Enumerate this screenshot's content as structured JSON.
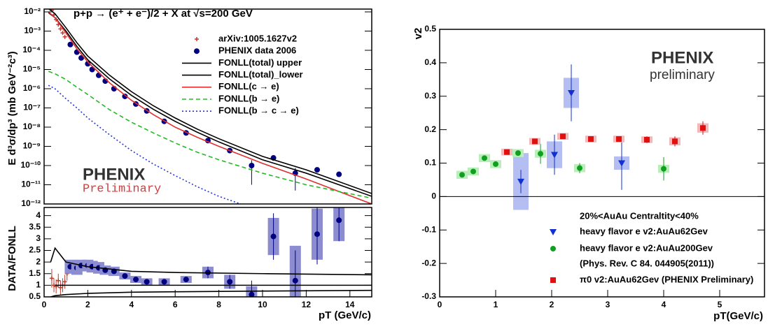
{
  "chart_data": [
    {
      "type": "scatter",
      "title": "p+p → (e⁺ + e⁻)/2 + X at √s=200 GeV",
      "y_label": "E d³σ/dp³ (mb GeV⁻²c³)",
      "log_y": true,
      "xlim": [
        0,
        15
      ],
      "ylim": [
        1e-12,
        0.014
      ],
      "yticks": [
        {
          "value": 1e-12,
          "label": "10⁻¹²"
        },
        {
          "value": 1e-11,
          "label": "10⁻¹¹"
        },
        {
          "value": 1e-10,
          "label": "10⁻¹⁰"
        },
        {
          "value": 1e-09,
          "label": "10⁻⁹"
        },
        {
          "value": 1e-08,
          "label": "10⁻⁸"
        },
        {
          "value": 1e-07,
          "label": "10⁻⁷"
        },
        {
          "value": 1e-06,
          "label": "10⁻⁶"
        },
        {
          "value": 1e-05,
          "label": "10⁻⁵"
        },
        {
          "value": 0.0001,
          "label": "10⁻⁴"
        },
        {
          "value": 0.001,
          "label": "10⁻³"
        },
        {
          "value": 0.01,
          "label": "10⁻²"
        }
      ],
      "logo": {
        "name": "PHENIX",
        "sub": "Preliminary"
      },
      "series": [
        {
          "name": "arXiv:1005.1627v2",
          "color": "#c0392b",
          "marker": "cross",
          "x": [
            0.35,
            0.45,
            0.55,
            0.65,
            0.75,
            0.85,
            0.95
          ],
          "values": [
            0.012,
            0.007,
            0.004,
            0.0022,
            0.0013,
            0.0008,
            0.0005
          ]
        },
        {
          "name": "PHENIX data 2006",
          "color": "#000080",
          "marker": "circle",
          "x": [
            1.2,
            1.5,
            1.7,
            2,
            2.2,
            2.5,
            2.8,
            3.2,
            3.7,
            4.2,
            4.7,
            5.5,
            6.5,
            7.5,
            8.5,
            9.5,
            10.5,
            11.5,
            12.5,
            13.5
          ],
          "values": [
            0.0002,
            8e-05,
            4e-05,
            2e-05,
            1e-05,
            5e-06,
            2.5e-06,
            1e-06,
            4e-07,
            1.6e-07,
            7e-08,
            2e-08,
            5e-09,
            2e-09,
            6e-10,
            1e-10,
            2.5e-10,
            4e-11,
            6e-11,
            3.5e-11
          ],
          "errors": [
            null,
            null,
            null,
            null,
            null,
            null,
            null,
            null,
            null,
            null,
            null,
            null,
            null,
            null,
            null,
            9e-11,
            null,
            3.5e-11,
            null,
            null
          ]
        },
        {
          "name": "FONLL(total) upper",
          "color": "#000000",
          "line": "solid",
          "x": [
            0.2,
            0.5,
            1,
            1.5,
            2,
            3,
            4,
            5,
            6,
            7,
            8,
            10,
            12,
            15
          ],
          "values": [
            0.015,
            0.008,
            0.0015,
            0.00025,
            5e-05,
            5e-06,
            7e-07,
            1.3e-07,
            3e-08,
            8e-09,
            2.5e-09,
            3e-10,
            6e-11,
            3.5e-12
          ]
        },
        {
          "name": "FONLL(total)_lower",
          "color": "#000000",
          "line": "solid",
          "x": [
            0.2,
            0.5,
            1,
            1.5,
            2,
            3,
            4,
            5,
            6,
            7,
            8,
            10,
            12,
            15
          ],
          "values": [
            0.009,
            0.005,
            0.001,
            0.00016,
            3.2e-05,
            3.2e-06,
            4.5e-07,
            8.5e-08,
            2e-08,
            5.5e-09,
            1.7e-09,
            2e-10,
            4e-11,
            2.5e-12
          ]
        },
        {
          "name": "FONLL(c → e)",
          "color": "#e03030",
          "line": "solid",
          "x": [
            0.2,
            0.5,
            1,
            1.5,
            2,
            3,
            4,
            5,
            6,
            7,
            8,
            10,
            12,
            15
          ],
          "values": [
            0.01,
            0.005,
            0.0008,
            0.00012,
            2.5e-05,
            2e-06,
            2.5e-07,
            4.5e-08,
            1e-08,
            3e-09,
            1e-09,
            1.3e-10,
            2e-11,
            1e-12
          ]
        },
        {
          "name": "FONLL(b → e)",
          "color": "#22bb22",
          "line": "dashed",
          "x": [
            0.2,
            0.5,
            1,
            1.5,
            2,
            3,
            4,
            5,
            6,
            7,
            8,
            10,
            12,
            15
          ],
          "values": [
            8e-06,
            6e-06,
            3e-06,
            1.2e-06,
            5e-07,
            8e-08,
            1.8e-08,
            5e-09,
            1.5e-09,
            5e-10,
            2e-10,
            4e-11,
            1e-11,
            2e-12
          ]
        },
        {
          "name": "FONLL(b → c → e)",
          "color": "#2233dd",
          "line": "dotted",
          "x": [
            0.2,
            0.5,
            1,
            1.5,
            2,
            3,
            4,
            5,
            6,
            7,
            8,
            9
          ],
          "values": [
            1.5e-06,
            1e-06,
            3e-07,
            1e-07,
            3e-08,
            4e-09,
            6e-10,
            1.2e-10,
            3e-11,
            8e-12,
            2.5e-12,
            1e-12
          ]
        }
      ]
    },
    {
      "type": "scatter",
      "x_label": "pT (GeV/c)",
      "y_label": "DATA/FONLL",
      "xlim": [
        0,
        15
      ],
      "ylim": [
        0.5,
        4.35
      ],
      "xticks": [
        0,
        2,
        4,
        6,
        8,
        10,
        12,
        14
      ],
      "yticks": [
        0.5,
        1,
        1.5,
        2,
        2.5,
        3,
        3.5,
        4
      ],
      "series": [
        {
          "color": "#c0392b",
          "marker": "cross",
          "x": [
            0.35,
            0.45,
            0.55,
            0.65,
            0.75,
            0.85,
            0.95,
            1.05
          ],
          "values": [
            1.3,
            1.0,
            0.95,
            1.2,
            0.9,
            1.0,
            1.15,
            1.5
          ],
          "errors": [
            0.4,
            0.3,
            0.3,
            0.3,
            0.3,
            0.3,
            0.3,
            0.3
          ]
        },
        {
          "color": "#000080",
          "marker": "circle",
          "box_color": "#8c8cd0",
          "x": [
            1.2,
            1.5,
            1.7,
            2,
            2.2,
            2.5,
            2.8,
            3.2,
            3.7,
            4.2,
            4.7,
            5.5,
            6.5,
            7.5,
            8.5,
            9.5,
            10.5,
            11.5,
            12.5,
            13.5
          ],
          "values": [
            1.8,
            1.75,
            1.85,
            1.85,
            1.8,
            1.75,
            1.65,
            1.6,
            1.4,
            1.25,
            1.15,
            1.15,
            1.25,
            1.55,
            1.15,
            0.6,
            3.1,
            1.2,
            3.2,
            3.8
          ],
          "errors": [
            0.05,
            0.05,
            0.05,
            0.05,
            0.05,
            0.05,
            0.05,
            0.06,
            0.06,
            0.06,
            0.07,
            0.08,
            0.1,
            0.25,
            0.3,
            0.6,
            1.0,
            1.3,
            1.3,
            0.9
          ],
          "sys": [
            0.3,
            0.3,
            0.25,
            0.25,
            0.25,
            0.25,
            0.2,
            0.2,
            0.15,
            0.15,
            0.15,
            0.15,
            0.15,
            0.25,
            0.3,
            0.35,
            0.8,
            1.5,
            1.1,
            0.9
          ]
        },
        {
          "color": "#000000",
          "line": "solid",
          "x": [
            0.3,
            0.5,
            1,
            2,
            4,
            6,
            10,
            15
          ],
          "values": [
            2.0,
            2.6,
            2.0,
            1.8,
            1.6,
            1.55,
            1.5,
            1.45
          ]
        },
        {
          "color": "#000000",
          "line": "solid",
          "x": [
            0.3,
            0.5,
            1,
            2,
            4,
            6,
            10,
            15
          ],
          "values": [
            0.5,
            0.55,
            0.6,
            0.65,
            0.7,
            0.72,
            0.75,
            0.78
          ]
        },
        {
          "color": "#000000",
          "line": "solid",
          "x": [
            0.5,
            15
          ],
          "values": [
            1.0,
            1.0
          ]
        }
      ]
    },
    {
      "type": "scatter",
      "x_label": "pT(GeV/c)",
      "y_label": "v2",
      "xlim": [
        0,
        5.8
      ],
      "ylim": [
        -0.3,
        0.5
      ],
      "xticks": [
        0,
        1,
        2,
        3,
        4,
        5
      ],
      "yticks": [
        -0.3,
        -0.2,
        -0.1,
        0,
        0.1,
        0.2,
        0.3,
        0.4,
        0.5
      ],
      "zero_line": true,
      "legend_title": "20%<AuAu Centraltity<40%",
      "legend_note": "(Phys. Rev. C 84. 044905(2011))",
      "logo": {
        "name": "PHENIX",
        "sub": "preliminary"
      },
      "series": [
        {
          "name": "heavy flavor e v2:AuAu62Gev",
          "color": "#1030d0",
          "marker": "triangle",
          "box_color": "#b4bef2",
          "x": [
            1.45,
            2.05,
            2.35,
            3.25
          ],
          "values": [
            0.045,
            0.125,
            0.31,
            0.1
          ],
          "errors": [
            0.035,
            0.06,
            0.085,
            0.08
          ],
          "sys": [
            0.085,
            0.04,
            0.045,
            0.02
          ]
        },
        {
          "name": "heavy flavor e v2:AuAu200Gev",
          "color": "#10a020",
          "marker": "circle",
          "box_color": "#b8efb8",
          "x": [
            0.4,
            0.6,
            0.8,
            1.0,
            1.4,
            1.8,
            2.5,
            4.0
          ],
          "values": [
            0.065,
            0.075,
            0.115,
            0.097,
            0.13,
            0.128,
            0.085,
            0.083
          ],
          "errors": [
            0.008,
            0.008,
            0.008,
            0.008,
            0.008,
            0.03,
            0.015,
            0.035
          ],
          "sys": [
            0.012,
            0.012,
            0.012,
            0.012,
            0.012,
            0.012,
            0.012,
            0.012
          ]
        },
        {
          "name": "π0 v2:AuAu62Gev (PHENIX Preliminary)",
          "color": "#e01010",
          "marker": "square",
          "box_color": "#f4b8b8",
          "x": [
            1.2,
            1.7,
            2.2,
            2.7,
            3.2,
            3.7,
            4.2,
            4.7
          ],
          "values": [
            0.133,
            0.165,
            0.18,
            0.172,
            0.172,
            0.17,
            0.165,
            0.205
          ],
          "errors": [
            0.008,
            0.008,
            0.008,
            0.008,
            0.008,
            0.01,
            0.015,
            0.02
          ],
          "sys": [
            0.01,
            0.01,
            0.01,
            0.01,
            0.01,
            0.01,
            0.012,
            0.014
          ]
        }
      ]
    }
  ]
}
